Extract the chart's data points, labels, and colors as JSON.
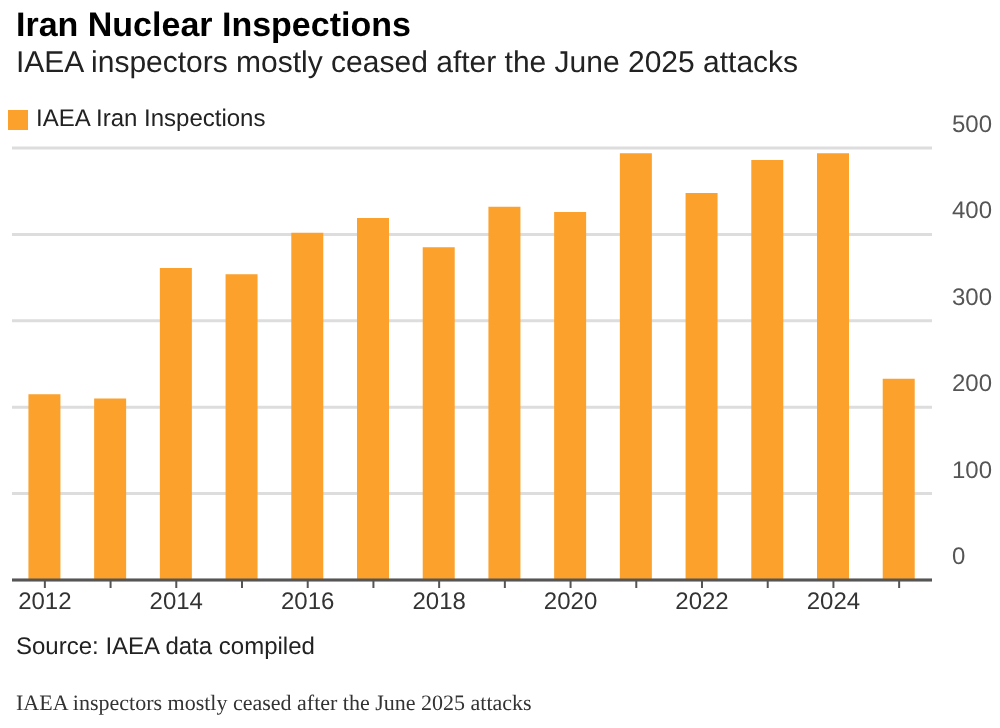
{
  "chart_data": {
    "type": "bar",
    "title": "Iran Nuclear Inspections",
    "subtitle": "IAEA inspectors mostly ceased after the June 2025 attacks",
    "categories": [
      "2012",
      null,
      "2014",
      null,
      "2016",
      null,
      "2018",
      null,
      "2020",
      null,
      "2022",
      null,
      "2024",
      null
    ],
    "series": [
      {
        "name": "IAEA Iran Inspections",
        "color": "#fba12c",
        "values": [
          215,
          210,
          361,
          354,
          402,
          419,
          385,
          432,
          426,
          494,
          448,
          486,
          494,
          233
        ]
      }
    ],
    "ylim": [
      0,
      500
    ],
    "yticks": [
      0,
      100,
      200,
      300,
      400,
      500
    ],
    "grid": "y",
    "legend": "top left",
    "annotations": [
      "Source: IAEA data compiled",
      "IAEA inspectors mostly ceased after the June 2025 attacks"
    ]
  }
}
